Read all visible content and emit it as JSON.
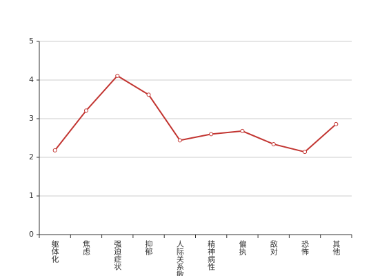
{
  "chart_data": {
    "type": "line",
    "categories": [
      "躯体化",
      "焦虑",
      "强迫症状",
      "抑郁",
      "人际关系敏感",
      "精神病性",
      "偏执",
      "敌对",
      "恐怖",
      "其他"
    ],
    "series": [
      {
        "color": "#c23531",
        "values": [
          2.18,
          3.21,
          4.11,
          3.62,
          2.44,
          2.6,
          2.68,
          2.34,
          2.14,
          2.86
        ]
      }
    ],
    "ylim": [
      0,
      5
    ],
    "yticks": [
      0,
      1,
      2,
      3,
      4,
      5
    ],
    "grid": true
  }
}
